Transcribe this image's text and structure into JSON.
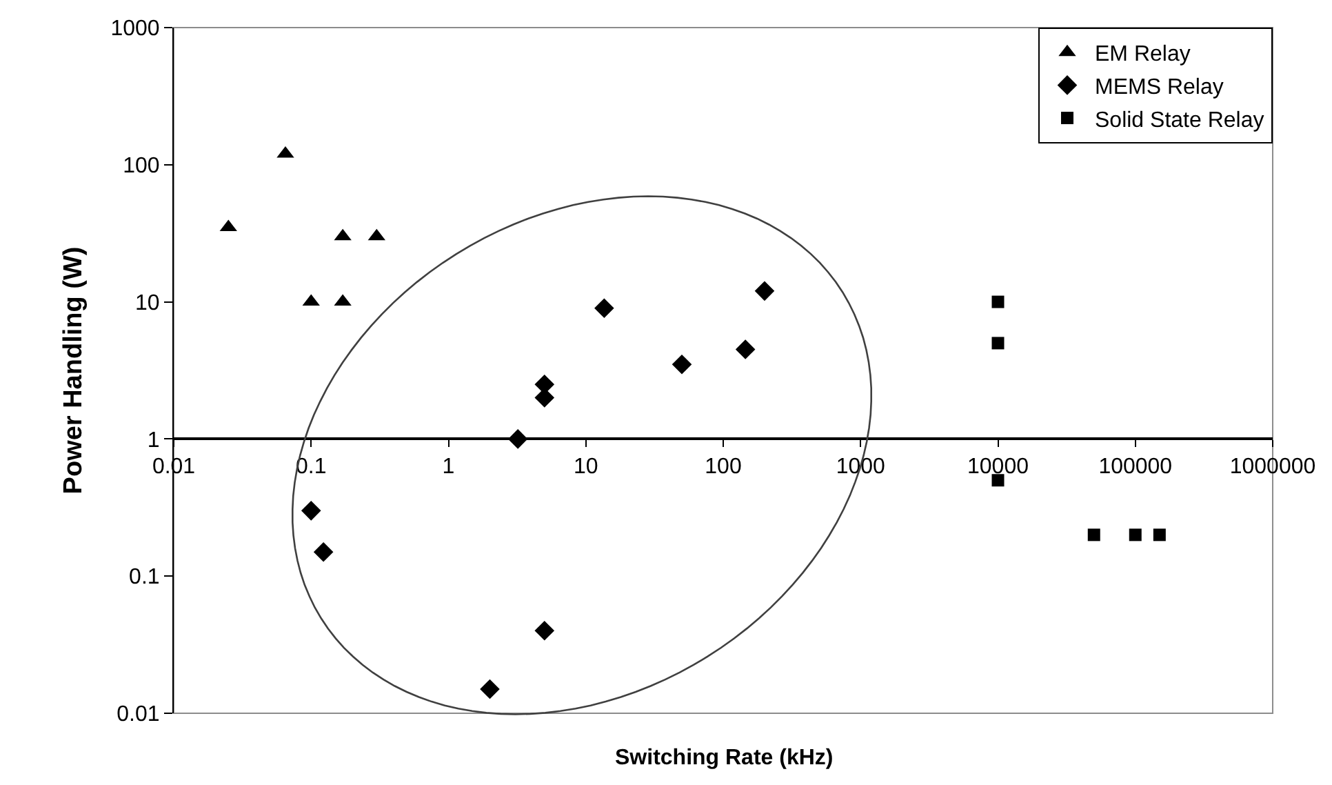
{
  "chart_data": {
    "type": "scatter",
    "xlabel": "Switching Rate (kHz)",
    "ylabel": "Power Handling (W)",
    "log": "xy",
    "grid": false,
    "legend": "top right",
    "xlim": [
      0.01,
      1000000
    ],
    "xticks": [
      0.01,
      0.1,
      1,
      10,
      100,
      1000,
      10000,
      100000,
      1000000
    ],
    "ylim": [
      0.01,
      1000
    ],
    "yticks": [
      0.01,
      0.1,
      1,
      10,
      100,
      1000
    ],
    "series": [
      {
        "name": "EM Relay",
        "color": "#000000",
        "marker": "triangle",
        "x": [
          0.025,
          0.065,
          0.1,
          0.17,
          0.17,
          0.3
        ],
        "values": [
          35,
          120,
          10,
          30,
          10,
          30
        ]
      },
      {
        "name": "MEMS Relay",
        "color": "#000000",
        "marker": "diamond",
        "x": [
          3.2,
          5,
          5,
          13.6,
          50,
          145,
          200,
          0.1,
          0.123,
          2,
          5
        ],
        "values": [
          1,
          2,
          2.5,
          9,
          3.5,
          4.5,
          12,
          0.3,
          0.15,
          0.015,
          0.04
        ]
      },
      {
        "name": "Solid State Relay",
        "color": "#000000",
        "marker": "square",
        "x": [
          10000,
          10000,
          10000,
          50000,
          100000,
          150000
        ],
        "values": [
          10,
          5,
          0.5,
          0.2,
          0.2,
          0.2
        ]
      }
    ]
  }
}
